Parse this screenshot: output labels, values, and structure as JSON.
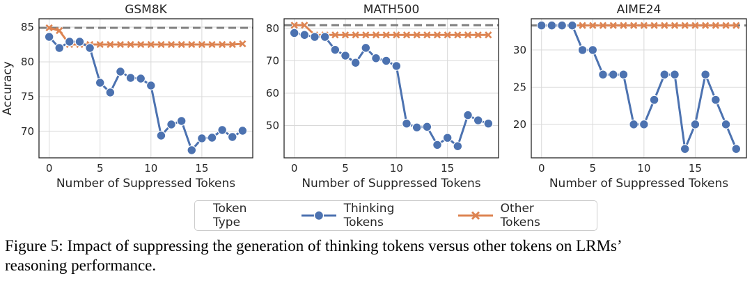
{
  "chart_data": [
    {
      "type": "line",
      "title": "GSM8K",
      "xlabel": "Number of Suppressed Tokens",
      "ylabel": "Accuracy",
      "xlim": [
        -1,
        20
      ],
      "ylim": [
        66.2,
        86.2
      ],
      "xticks": [
        0,
        5,
        10,
        15
      ],
      "yticks": [
        70,
        75,
        80,
        85
      ],
      "baseline": 84.9,
      "x": [
        0,
        1,
        2,
        3,
        4,
        5,
        6,
        7,
        8,
        9,
        10,
        11,
        12,
        13,
        14,
        15,
        16,
        17,
        18,
        19
      ],
      "series": [
        {
          "name": "Thinking Tokens",
          "values": [
            83.6,
            82.0,
            82.9,
            82.9,
            82.0,
            77.0,
            75.6,
            78.6,
            77.7,
            77.6,
            76.6,
            69.4,
            71.0,
            71.5,
            67.3,
            69.0,
            69.1,
            70.2,
            69.2,
            70.1
          ]
        },
        {
          "name": "Other Tokens",
          "values": [
            84.9,
            84.5,
            82.5,
            82.5,
            82.5,
            82.5,
            82.5,
            82.5,
            82.5,
            82.5,
            82.5,
            82.5,
            82.5,
            82.5,
            82.5,
            82.5,
            82.5,
            82.5,
            82.5,
            82.6
          ]
        }
      ],
      "grid": true
    },
    {
      "type": "line",
      "title": "MATH500",
      "xlabel": "Number of Suppressed Tokens",
      "ylabel": "",
      "xlim": [
        -1,
        20
      ],
      "ylim": [
        40,
        83
      ],
      "xticks": [
        0,
        5,
        10,
        15
      ],
      "yticks": [
        50,
        60,
        70,
        80
      ],
      "baseline": 81.0,
      "x": [
        0,
        1,
        2,
        3,
        4,
        5,
        6,
        7,
        8,
        9,
        10,
        11,
        12,
        13,
        14,
        15,
        16,
        17,
        18,
        19
      ],
      "series": [
        {
          "name": "Thinking Tokens",
          "values": [
            78.6,
            78.0,
            77.4,
            77.4,
            73.4,
            71.6,
            69.4,
            74.0,
            70.8,
            70.0,
            68.4,
            50.6,
            49.4,
            49.6,
            44.0,
            46.2,
            43.6,
            53.2,
            51.6,
            50.6
          ]
        },
        {
          "name": "Other Tokens",
          "values": [
            81.0,
            81.0,
            78.0,
            78.0,
            78.0,
            78.0,
            78.0,
            78.0,
            78.0,
            78.0,
            78.0,
            78.0,
            78.0,
            78.0,
            78.0,
            78.0,
            78.0,
            78.0,
            78.0,
            78.0
          ]
        }
      ],
      "grid": true
    },
    {
      "type": "line",
      "title": "AIME24",
      "xlabel": "Number of Suppressed Tokens",
      "ylabel": "",
      "xlim": [
        -1,
        20
      ],
      "ylim": [
        15.5,
        34.2
      ],
      "xticks": [
        0,
        5,
        10,
        15
      ],
      "yticks": [
        20,
        25,
        30
      ],
      "baseline": 33.3,
      "x": [
        0,
        1,
        2,
        3,
        4,
        5,
        6,
        7,
        8,
        9,
        10,
        11,
        12,
        13,
        14,
        15,
        16,
        17,
        18,
        19
      ],
      "series": [
        {
          "name": "Thinking Tokens",
          "values": [
            33.3,
            33.3,
            33.3,
            33.3,
            30.0,
            30.0,
            26.7,
            26.7,
            26.7,
            20.0,
            20.0,
            23.3,
            26.7,
            26.7,
            16.7,
            20.0,
            26.7,
            23.3,
            20.0,
            16.7
          ]
        },
        {
          "name": "Other Tokens",
          "values": [
            33.3,
            33.3,
            33.3,
            33.3,
            33.3,
            33.3,
            33.3,
            33.3,
            33.3,
            33.3,
            33.3,
            33.3,
            33.3,
            33.3,
            33.3,
            33.3,
            33.3,
            33.3,
            33.3,
            33.3
          ]
        }
      ],
      "grid": true
    }
  ],
  "legend": {
    "title": "Token Type",
    "entries": [
      "Thinking Tokens",
      "Other Tokens"
    ],
    "placement": "bottom-center"
  },
  "colors": {
    "thinking": "#4c72b0",
    "other": "#dd8452",
    "baseline": "#7f7f7f",
    "grid": "#d9d9d9",
    "axes": "#262626"
  },
  "caption": {
    "line1": "Figure 5: Impact of suppressing the generation of thinking tokens versus other tokens on LRMs’",
    "line2": "reasoning performance."
  }
}
